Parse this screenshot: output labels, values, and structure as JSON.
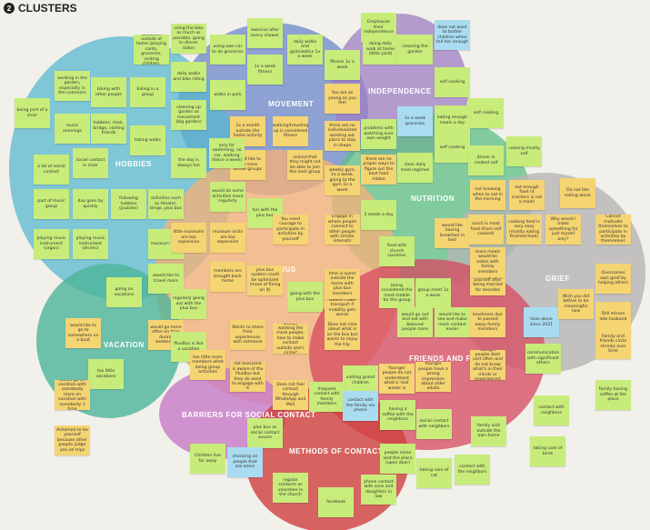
{
  "header": {
    "number": "2",
    "title": "CLUSTERS"
  },
  "colors": {
    "green_note": "#c8ec7a",
    "yellow_note": "#f5d472",
    "blue_note": "#a9dcf0",
    "movement": "#6b87c9",
    "independence": "#9d7fc4",
    "hobbies": "#58b8cf",
    "nutrition": "#5cbf86",
    "grief": "#b5b5b5",
    "plusbus": "#f2b27a",
    "vacation": "#4bb59a",
    "friends_family": "#d6485f",
    "barriers": "#c77bc8",
    "methods": "#d0403f"
  },
  "clusters": [
    {
      "key": "movement",
      "label": "MOVEMENT"
    },
    {
      "key": "independence",
      "label": "INDEPENDENCE"
    },
    {
      "key": "hobbies",
      "label": "HOBBIES"
    },
    {
      "key": "nutrition",
      "label": "NUTRITION"
    },
    {
      "key": "grief",
      "label": "GRIEF"
    },
    {
      "key": "plusbus",
      "label": "PLUSBUS"
    },
    {
      "key": "vacation",
      "label": "VACATION"
    },
    {
      "key": "friends_family",
      "label": "FRIENDS AND FAMILY"
    },
    {
      "key": "barriers",
      "label": "BARRIERS FOR SOCIAL CONTACT"
    },
    {
      "key": "methods",
      "label": "METHODS OF CONTACT"
    }
  ],
  "notes": [
    {
      "t": "many activities outside of home (playing cards, groceries, visiting children, walking)",
      "c": "green"
    },
    {
      "t": "using the bike as much as possible, going to dinner (bike)",
      "c": "green"
    },
    {
      "t": "using own car to do groceries",
      "c": "green"
    },
    {
      "t": "exercise after every shower",
      "c": "green"
    },
    {
      "t": "daily walks and gymnastics 1x a week",
      "c": "green"
    },
    {
      "t": "fitness 1x a week",
      "c": "green"
    },
    {
      "t": "1x a week fitness",
      "c": "green"
    },
    {
      "t": "daily walks and bike riding",
      "c": "green"
    },
    {
      "t": "walks in park",
      "c": "green"
    },
    {
      "t": "cleaning up garden as movement (big garden)",
      "c": "green"
    },
    {
      "t": "Emphasize their independence",
      "c": "green"
    },
    {
      "t": "doing daily walk at home (little yard)",
      "c": "green"
    },
    {
      "t": "cleaning the garden",
      "c": "green"
    },
    {
      "t": "does not want to bother children when tell her enough",
      "c": "blue"
    },
    {
      "t": "self cooking",
      "c": "green"
    },
    {
      "t": "self cooking",
      "c": "green"
    },
    {
      "t": "eating enough meals a day",
      "c": "green"
    },
    {
      "t": "working in the garden, especially in the summers",
      "c": "green"
    },
    {
      "t": "being part of a choir",
      "c": "green"
    },
    {
      "t": "biking with other people",
      "c": "green"
    },
    {
      "t": "biking in a group",
      "c": "green"
    },
    {
      "t": "music evenings",
      "c": "green"
    },
    {
      "t": "hobbies: choir, bridge, visiting friends",
      "c": "green"
    },
    {
      "t": "taking walks",
      "c": "green"
    },
    {
      "t": "a lot of social contact",
      "c": "green"
    },
    {
      "t": "social contact in choir",
      "c": "green"
    },
    {
      "t": "the day is always fun",
      "c": "green"
    },
    {
      "t": "1x a month outside the home activity",
      "c": "yellow"
    },
    {
      "t": "walking/traveling up is considered fitness",
      "c": "yellow"
    },
    {
      "t": "You are as young as you feel",
      "c": "yellow"
    },
    {
      "t": "there are no individualized working out plans to stay in shape",
      "c": "yellow"
    },
    {
      "t": "problems with watching over own weight",
      "c": "green"
    },
    {
      "t": "1x a week groceries",
      "c": "blue"
    },
    {
      "t": "self cooking",
      "c": "green"
    },
    {
      "t": "cooking mostly self",
      "c": "green"
    },
    {
      "t": "dinner is cooked self",
      "c": "green"
    },
    {
      "t": "part of music group",
      "c": "green"
    },
    {
      "t": "day goes by quickly",
      "c": "green"
    },
    {
      "t": "following hobbies (puzzles)",
      "c": "green"
    },
    {
      "t": "activities such as theater, bingo, plus bus",
      "c": "green"
    },
    {
      "t": "would like to see more active groups",
      "c": "yellow"
    },
    {
      "t": "only for swimming, no car, walking (twice a week)",
      "c": "green"
    },
    {
      "t": "scared that they might not be able to join the next group",
      "c": "yellow"
    },
    {
      "t": "weekly gym, 1x a week, going to the gym 1x a week",
      "c": "yellow"
    },
    {
      "t": "there are no proper ways to figure out the best food intake",
      "c": "yellow"
    },
    {
      "t": "clear daily meal regimen",
      "c": "green"
    },
    {
      "t": "not knowing when to eat in the morning",
      "c": "yellow"
    },
    {
      "t": "not enough food (4 crackers is not a meal)",
      "c": "yellow"
    },
    {
      "t": "Do not like eating alone",
      "c": "yellow"
    },
    {
      "t": "playing music instrument (organ)",
      "c": "green"
    },
    {
      "t": "playing music instrument (drums)",
      "c": "green"
    },
    {
      "t": "museum visits",
      "c": "green"
    },
    {
      "t": "little museums are too expensive",
      "c": "yellow"
    },
    {
      "t": "museum visits are too expensive",
      "c": "yellow"
    },
    {
      "t": "fun with the plus bus",
      "c": "green"
    },
    {
      "t": "would do some activities more regularly",
      "c": "green"
    },
    {
      "t": "You need courage to participate in activities by yourself",
      "c": "yellow"
    },
    {
      "t": "Engage in where people connect to other people with similar interests",
      "c": "yellow"
    },
    {
      "t": "3 meals a day",
      "c": "green"
    },
    {
      "t": "food with church societies",
      "c": "green"
    },
    {
      "t": "would like having breakfast in bed",
      "c": "yellow"
    },
    {
      "t": "lunch is most food (from self cooked)",
      "c": "yellow"
    },
    {
      "t": "cooking food is very easy (mostly eating finished food)",
      "c": "yellow"
    },
    {
      "t": "Why would I make something for just myself only?",
      "c": "yellow"
    },
    {
      "t": "Cannot motivate themselves to participate in activities by themselves",
      "c": "yellow"
    },
    {
      "t": "would like to travel more",
      "c": "green"
    },
    {
      "t": "going on vacations",
      "c": "green"
    },
    {
      "t": "members are brought back home",
      "c": "yellow"
    },
    {
      "t": "plus bus system could be optimized (more of fixing on it)",
      "c": "yellow"
    },
    {
      "t": "going with the plus bus",
      "c": "green"
    },
    {
      "t": "Doesn't take transport if mobility gets worse",
      "c": "yellow"
    },
    {
      "t": "being considered the most mobile for the group",
      "c": "green"
    },
    {
      "t": "group meet 1x a week",
      "c": "green"
    },
    {
      "t": "5+ to decide to go by yourself after being married for decades",
      "c": "yellow"
    },
    {
      "t": "more meals would be eaten with family members",
      "c": "yellow"
    },
    {
      "t": "Overcomes own grief by helping others",
      "c": "yellow"
    },
    {
      "t": "regularly going out with the plus bus",
      "c": "green"
    },
    {
      "t": "would go more often on trips during weekends",
      "c": "yellow"
    },
    {
      "t": "PlusBus is like a vacation",
      "c": "green"
    },
    {
      "t": "Wants to share their experiences with someone",
      "c": "yellow"
    },
    {
      "t": "always wanting the more people, how to make contact outside one's circle?",
      "c": "yellow"
    },
    {
      "t": "Does not care about what is on the bus but wants to enjoy the trip",
      "c": "yellow"
    },
    {
      "t": "time is spent outside the home with plus bus members",
      "c": "yellow"
    },
    {
      "t": "would go out and eat with beloved people more",
      "c": "green"
    },
    {
      "t": "would like to see and make more contact easier",
      "c": "green"
    },
    {
      "t": "loneliness due to passed away family members",
      "c": "yellow"
    },
    {
      "t": "lives alone since 2021",
      "c": "blue"
    },
    {
      "t": "Wish you did before to be meaningful now",
      "c": "yellow"
    },
    {
      "t": "Still misses late husband",
      "c": "yellow"
    },
    {
      "t": "Family and friends circle shrinks over time",
      "c": "yellow"
    },
    {
      "t": "would like to go to somewhere on a boat",
      "c": "yellow"
    },
    {
      "t": "too little vacations",
      "c": "green"
    },
    {
      "t": "too little more members what doing group activities",
      "c": "yellow"
    },
    {
      "t": "not everyone is aware of the PlusBus but they do want to engage with it",
      "c": "yellow"
    },
    {
      "t": "Does not feel contact through WhatsApp and Mail",
      "c": "yellow"
    },
    {
      "t": "visiting grand children",
      "c": "green"
    },
    {
      "t": "Younger people do not understand what a 'real' winter is",
      "c": "yellow"
    },
    {
      "t": "Younger people have a wrong impression about older adults",
      "c": "yellow"
    },
    {
      "t": "Younger people dont visit often and do not know what's in their minds or experienced",
      "c": "yellow"
    },
    {
      "t": "communication with significant others",
      "c": "green"
    },
    {
      "t": "family having coffee at the place",
      "c": "green"
    },
    {
      "t": "would go on vacation with somebody more on vacation with somebody 1 time",
      "c": "yellow"
    },
    {
      "t": "plus bus as social contact source",
      "c": "green"
    },
    {
      "t": "frequent contact with family members",
      "c": "green"
    },
    {
      "t": "contact with the family via phone",
      "c": "blue"
    },
    {
      "t": "having a coffee with the neighbors",
      "c": "green"
    },
    {
      "t": "social contact with neighbors",
      "c": "green"
    },
    {
      "t": "family visit outside the own home",
      "c": "green"
    },
    {
      "t": "contact with neighbors",
      "c": "green"
    },
    {
      "t": "taking care of birds",
      "c": "green"
    },
    {
      "t": "Ashamed to be yourself because other people judge you on trips",
      "c": "yellow"
    },
    {
      "t": "Children live far away",
      "c": "green"
    },
    {
      "t": "checking on people that are alone",
      "c": "blue"
    },
    {
      "t": "people come visit the place (open door)",
      "c": "green"
    },
    {
      "t": "taking care of cat",
      "c": "green"
    },
    {
      "t": "contact with the neighbors",
      "c": "green"
    },
    {
      "t": "regular contacts as volunteer in the church",
      "c": "green"
    },
    {
      "t": "facebook",
      "c": "green"
    },
    {
      "t": "phone contact with sons and daughters in law",
      "c": "green"
    }
  ]
}
